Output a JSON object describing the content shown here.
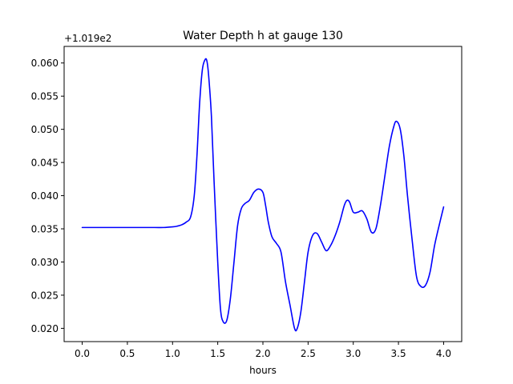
{
  "chart_data": {
    "type": "line",
    "title": "Water Depth h at gauge 130",
    "xlabel": "hours",
    "ylabel": "",
    "y_offset_label": "+1.019e2",
    "xlim": [
      -0.2,
      4.2
    ],
    "ylim": [
      0.018,
      0.0625
    ],
    "x_ticks": [
      0.0,
      0.5,
      1.0,
      1.5,
      2.0,
      2.5,
      3.0,
      3.5,
      4.0
    ],
    "x_tick_labels": [
      "0.0",
      "0.5",
      "1.0",
      "1.5",
      "2.0",
      "2.5",
      "3.0",
      "3.5",
      "4.0"
    ],
    "y_ticks": [
      0.02,
      0.025,
      0.03,
      0.035,
      0.04,
      0.045,
      0.05,
      0.055,
      0.06
    ],
    "y_tick_labels": [
      "0.020",
      "0.025",
      "0.030",
      "0.035",
      "0.040",
      "0.045",
      "0.050",
      "0.055",
      "0.060"
    ],
    "grid": false,
    "series": [
      {
        "color": "#0000ff",
        "x": [
          0.0,
          0.2,
          0.4,
          0.6,
          0.8,
          0.9,
          1.0,
          1.05,
          1.1,
          1.15,
          1.2,
          1.24,
          1.27,
          1.3,
          1.33,
          1.36,
          1.38,
          1.4,
          1.43,
          1.46,
          1.5,
          1.53,
          1.56,
          1.6,
          1.64,
          1.68,
          1.72,
          1.76,
          1.8,
          1.85,
          1.9,
          1.95,
          2.0,
          2.03,
          2.06,
          2.1,
          2.15,
          2.2,
          2.25,
          2.3,
          2.35,
          2.38,
          2.42,
          2.46,
          2.5,
          2.55,
          2.6,
          2.65,
          2.7,
          2.75,
          2.8,
          2.85,
          2.9,
          2.93,
          2.96,
          3.0,
          3.05,
          3.1,
          3.15,
          3.2,
          3.25,
          3.3,
          3.35,
          3.4,
          3.45,
          3.48,
          3.52,
          3.56,
          3.6,
          3.65,
          3.7,
          3.75,
          3.8,
          3.85,
          3.9,
          3.95,
          4.0
        ],
        "y": [
          0.0352,
          0.0352,
          0.0352,
          0.0352,
          0.0352,
          0.0352,
          0.0353,
          0.0354,
          0.0356,
          0.036,
          0.0368,
          0.04,
          0.046,
          0.054,
          0.059,
          0.0605,
          0.0603,
          0.058,
          0.052,
          0.042,
          0.03,
          0.023,
          0.021,
          0.0212,
          0.0245,
          0.03,
          0.0355,
          0.038,
          0.0388,
          0.0393,
          0.0405,
          0.041,
          0.0405,
          0.0385,
          0.036,
          0.0338,
          0.0328,
          0.0315,
          0.027,
          0.0235,
          0.02,
          0.02,
          0.0225,
          0.027,
          0.0315,
          0.034,
          0.0343,
          0.033,
          0.0317,
          0.0325,
          0.034,
          0.036,
          0.0385,
          0.0393,
          0.039,
          0.0375,
          0.0375,
          0.0377,
          0.0365,
          0.0345,
          0.035,
          0.0385,
          0.043,
          0.0475,
          0.0505,
          0.0512,
          0.05,
          0.046,
          0.04,
          0.0335,
          0.0278,
          0.0263,
          0.0265,
          0.0285,
          0.0325,
          0.0355,
          0.0383
        ]
      }
    ]
  }
}
